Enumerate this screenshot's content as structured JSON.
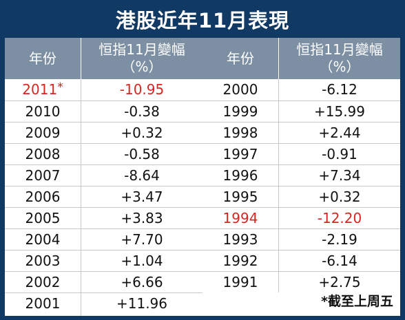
{
  "title": "港股近年11月表現",
  "headers": {
    "year": "年份",
    "index_line1": "恒指11月變幅",
    "index_line2": "（%）"
  },
  "footnote": "*截至上周五",
  "chart_data": {
    "type": "table",
    "title": "港股近年11月表現",
    "columns": [
      "年份",
      "恒指11月變幅（%）"
    ],
    "rows": [
      {
        "year": "2011",
        "value": "-10.95",
        "asterisk": "*",
        "highlight": "#d6261f"
      },
      {
        "year": "2010",
        "value": "-0.38"
      },
      {
        "year": "2009",
        "value": "+0.32"
      },
      {
        "year": "2008",
        "value": "-0.58"
      },
      {
        "year": "2007",
        "value": "-8.64"
      },
      {
        "year": "2006",
        "value": "+3.47"
      },
      {
        "year": "2005",
        "value": "+3.83"
      },
      {
        "year": "2004",
        "value": "+7.70"
      },
      {
        "year": "2003",
        "value": "+1.04"
      },
      {
        "year": "2002",
        "value": "+6.66"
      },
      {
        "year": "2001",
        "value": "+11.96"
      },
      {
        "year": "2000",
        "value": "-6.12"
      },
      {
        "year": "1999",
        "value": "+15.99"
      },
      {
        "year": "1998",
        "value": "+2.44"
      },
      {
        "year": "1997",
        "value": "-0.91"
      },
      {
        "year": "1996",
        "value": "+7.34"
      },
      {
        "year": "1995",
        "value": "+0.32"
      },
      {
        "year": "1994",
        "value": "-12.20",
        "highlight": "#d6261f"
      },
      {
        "year": "1993",
        "value": "-2.19"
      },
      {
        "year": "1992",
        "value": "-6.14"
      },
      {
        "year": "1991",
        "value": "+2.75"
      }
    ]
  },
  "colors": {
    "background": "#103a63",
    "header": "#7d8fa3",
    "highlight": "#d6261f"
  }
}
